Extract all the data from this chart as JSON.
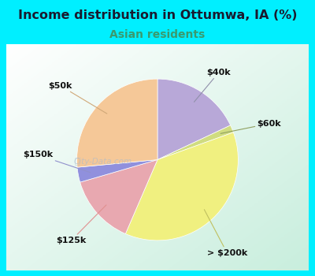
{
  "title": "Income distribution in Ottumwa, IA (%)",
  "subtitle": "Asian residents",
  "title_color": "#1a1a2e",
  "subtitle_color": "#3a9a6e",
  "background_outer": "#00efff",
  "labels": [
    "$40k",
    "$60k",
    "> $200k",
    "$125k",
    "$150k",
    "$50k"
  ],
  "sizes": [
    18,
    1.5,
    37,
    14,
    3,
    26.5
  ],
  "colors": [
    "#b8a8d8",
    "#d0dc80",
    "#f0f080",
    "#e8a8b0",
    "#9090dd",
    "#f5c898"
  ],
  "startangle": 90,
  "watermark": "City-Data.com"
}
